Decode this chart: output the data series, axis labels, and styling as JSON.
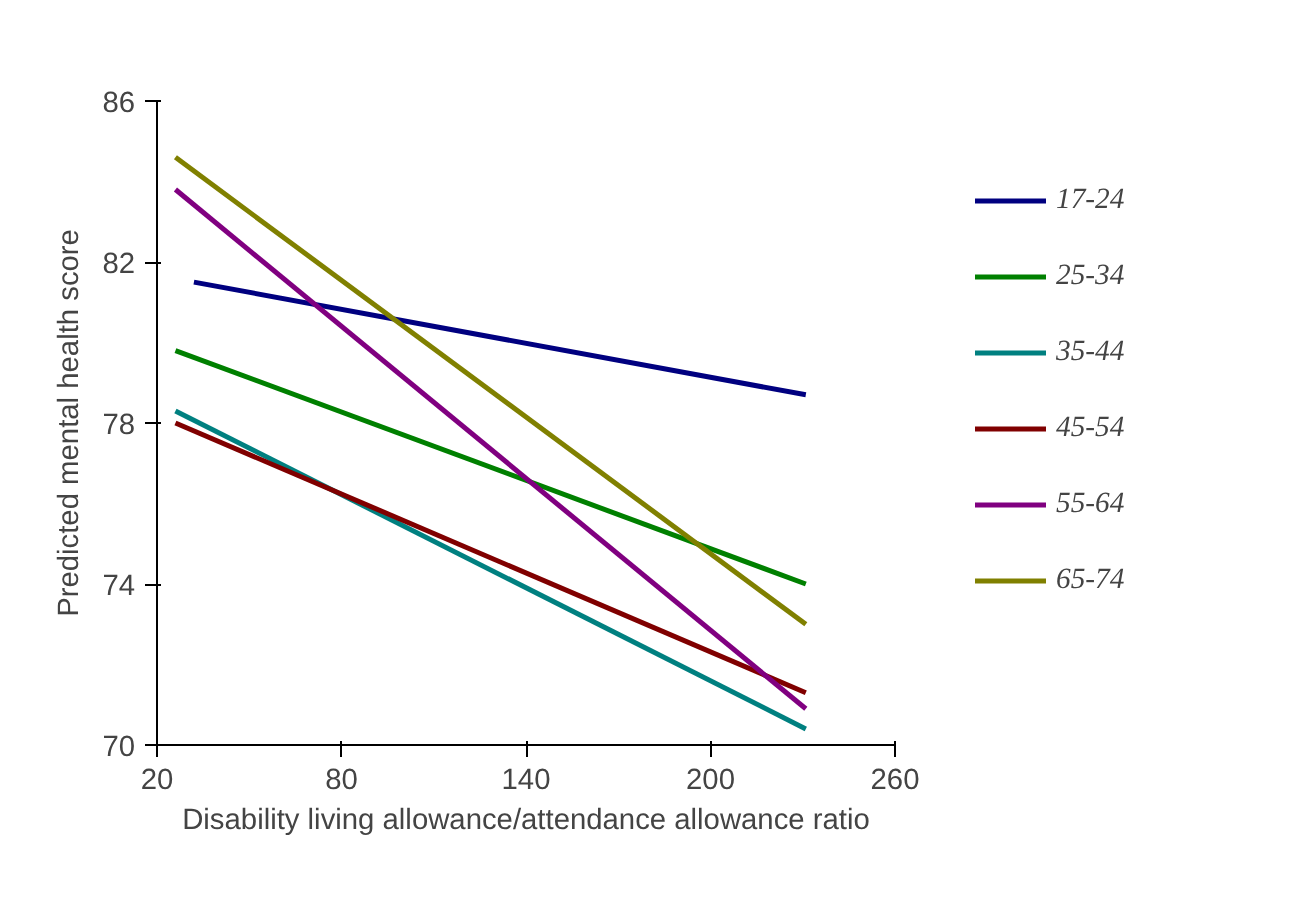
{
  "chart_data": {
    "type": "line",
    "xlabel": "Disability living allowance/attendance allowance ratio",
    "ylabel": "Predicted mental health score",
    "xlim": [
      20,
      260
    ],
    "ylim": [
      70,
      86
    ],
    "xticks": [
      20,
      80,
      140,
      200,
      260
    ],
    "yticks": [
      70,
      74,
      78,
      82,
      86
    ],
    "grid": false,
    "legend": "right",
    "marker": "none",
    "line_style": "solid",
    "series": [
      {
        "name": "17-24",
        "color": "#000080",
        "x": [
          32,
          231
        ],
        "values": [
          81.5,
          78.7
        ]
      },
      {
        "name": "25-34",
        "color": "#008000",
        "x": [
          26,
          231
        ],
        "values": [
          79.8,
          74.0
        ]
      },
      {
        "name": "35-44",
        "color": "#008080",
        "x": [
          26,
          231
        ],
        "values": [
          78.3,
          70.4
        ]
      },
      {
        "name": "45-54",
        "color": "#800000",
        "x": [
          26,
          231
        ],
        "values": [
          78.0,
          71.3
        ]
      },
      {
        "name": "55-64",
        "color": "#800080",
        "x": [
          26,
          231
        ],
        "values": [
          83.8,
          70.9
        ]
      },
      {
        "name": "65-74",
        "color": "#808000",
        "x": [
          26,
          231
        ],
        "values": [
          84.6,
          73.0
        ]
      }
    ]
  }
}
